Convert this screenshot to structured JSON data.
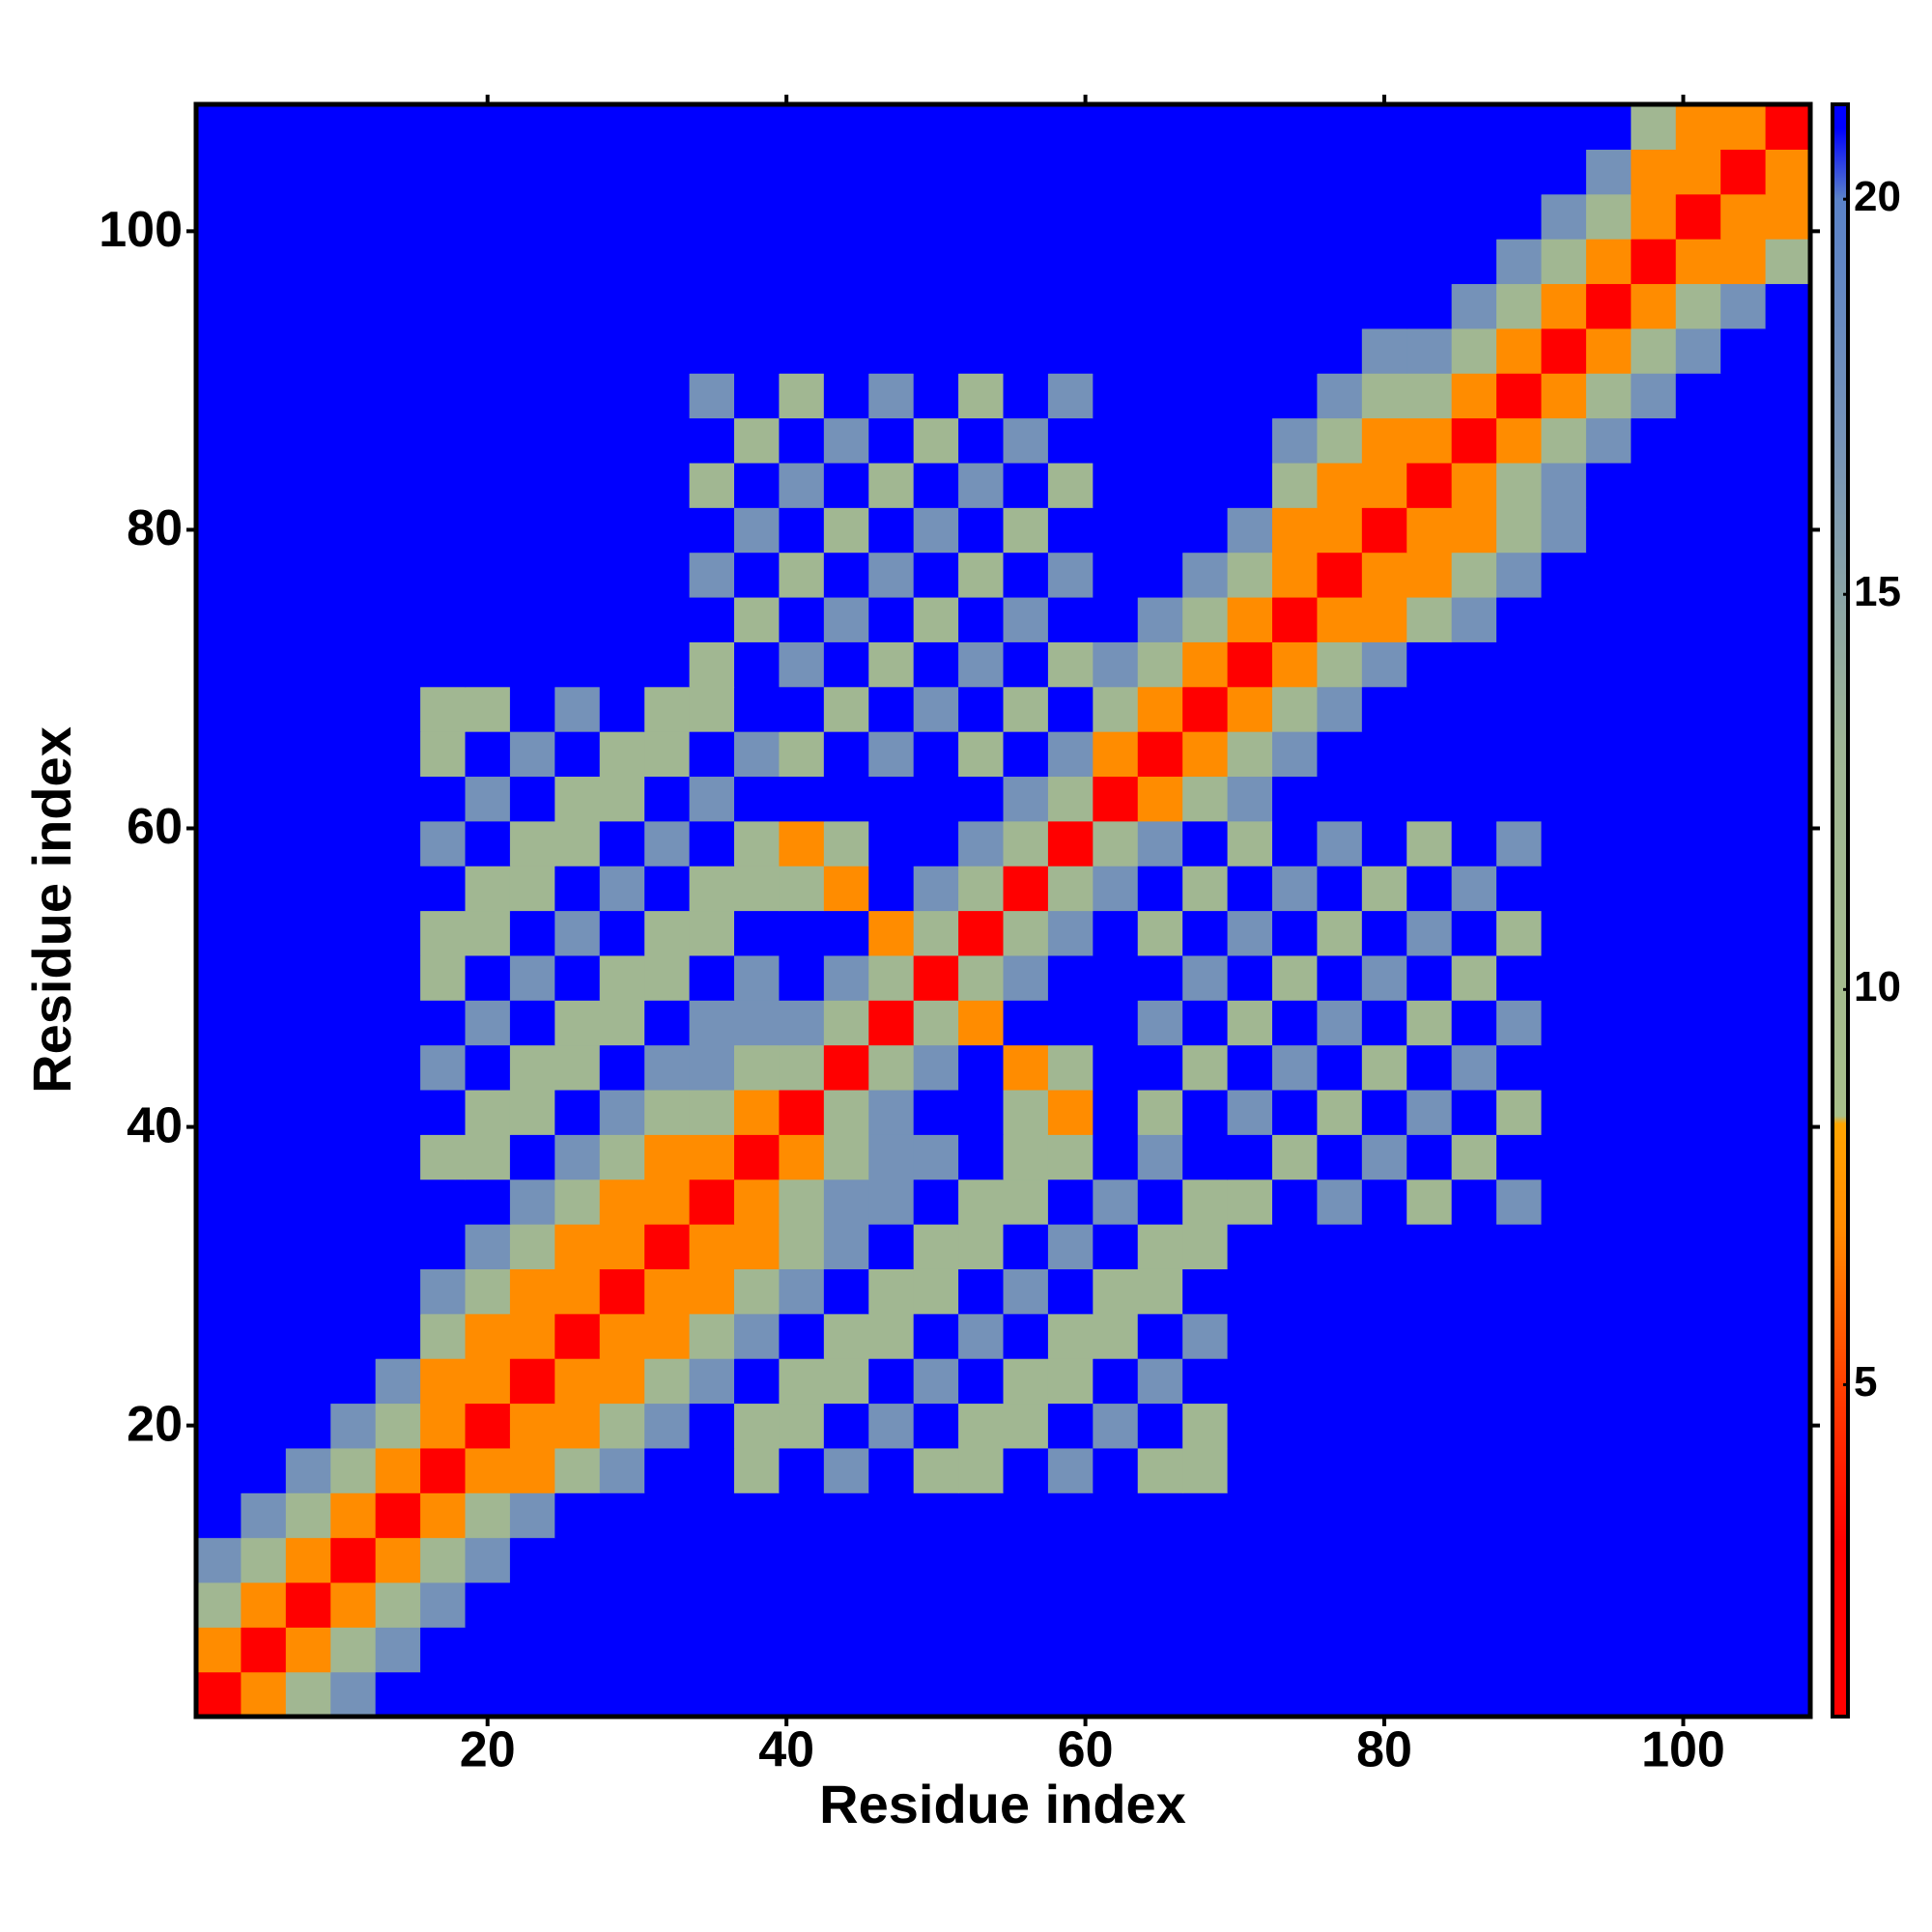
{
  "chart_data": {
    "type": "heatmap",
    "x_label": "Residue index",
    "y_label": "Residue index",
    "xlim": [
      0.5,
      108.5
    ],
    "ylim": [
      0.5,
      108.5
    ],
    "xticks": [
      20,
      40,
      60,
      80,
      100
    ],
    "yticks": [
      20,
      40,
      60,
      80,
      100
    ],
    "zlim": [
      0.8,
      21.2
    ],
    "zticks": [
      5,
      10,
      15,
      20
    ],
    "colorscale": [
      [
        0.8,
        "#ff0000"
      ],
      [
        3,
        "#ff0000"
      ],
      [
        5,
        "#ff4000"
      ],
      [
        7,
        "#ff8c00"
      ],
      [
        8.3,
        "#ffa500"
      ],
      [
        8.4,
        "#a8bf8a"
      ],
      [
        13,
        "#9fb594"
      ],
      [
        17,
        "#7592b8"
      ],
      [
        20,
        "#5a82c8"
      ],
      [
        20.9,
        "#0000ff"
      ],
      [
        21.2,
        "#0000ff"
      ]
    ],
    "x": [
      2,
      5,
      8,
      11,
      14,
      17,
      20,
      23,
      26,
      29,
      32,
      35,
      38,
      41,
      44,
      47,
      50,
      53,
      56,
      59,
      62,
      65,
      68,
      71,
      74,
      77,
      80,
      83,
      86,
      89,
      92,
      95,
      98,
      101,
      104,
      107
    ],
    "y": [
      2,
      5,
      8,
      11,
      14,
      17,
      20,
      23,
      26,
      29,
      32,
      35,
      38,
      41,
      44,
      47,
      50,
      53,
      56,
      59,
      62,
      65,
      68,
      71,
      74,
      77,
      80,
      83,
      86,
      89,
      92,
      95,
      98,
      101,
      104,
      107
    ],
    "z": [
      [
        2,
        7,
        12,
        17,
        21,
        21,
        21,
        21,
        21,
        21,
        21,
        21,
        21,
        21,
        21,
        21,
        21,
        21,
        21,
        21,
        21,
        21,
        21,
        21,
        21,
        21,
        21,
        21,
        21,
        21,
        21,
        21,
        21,
        21,
        21,
        21
      ],
      [
        7,
        2,
        7,
        12,
        17,
        21,
        21,
        21,
        21,
        21,
        21,
        21,
        21,
        21,
        21,
        21,
        21,
        21,
        21,
        21,
        21,
        21,
        21,
        21,
        21,
        21,
        21,
        21,
        21,
        21,
        21,
        21,
        21,
        21,
        21,
        21
      ],
      [
        12,
        7,
        2,
        7,
        12,
        17,
        21,
        21,
        21,
        21,
        21,
        21,
        21,
        21,
        21,
        21,
        21,
        21,
        21,
        21,
        21,
        21,
        21,
        21,
        21,
        21,
        21,
        21,
        21,
        21,
        21,
        21,
        21,
        21,
        21,
        21
      ],
      [
        17,
        12,
        7,
        2,
        7,
        12,
        17,
        21,
        21,
        21,
        21,
        21,
        21,
        21,
        21,
        21,
        21,
        21,
        21,
        21,
        21,
        21,
        21,
        21,
        21,
        21,
        21,
        21,
        21,
        21,
        21,
        21,
        21,
        21,
        21,
        21
      ],
      [
        21,
        17,
        12,
        7,
        2,
        7,
        12,
        17,
        21,
        21,
        21,
        21,
        21,
        21,
        21,
        21,
        21,
        21,
        21,
        21,
        21,
        21,
        21,
        21,
        21,
        21,
        21,
        21,
        21,
        21,
        21,
        21,
        21,
        21,
        21,
        21
      ],
      [
        21,
        21,
        17,
        12,
        7,
        2,
        7,
        7,
        12,
        17,
        21,
        21,
        12,
        21,
        17,
        21,
        12,
        12,
        21,
        17,
        21,
        12,
        12,
        21,
        21,
        21,
        21,
        21,
        21,
        21,
        21,
        21,
        21,
        21,
        21,
        21
      ],
      [
        21,
        21,
        21,
        17,
        12,
        7,
        2,
        7,
        7,
        12,
        17,
        21,
        12,
        12,
        21,
        17,
        21,
        12,
        12,
        21,
        17,
        21,
        12,
        21,
        21,
        21,
        21,
        21,
        21,
        21,
        21,
        21,
        21,
        21,
        21,
        21
      ],
      [
        21,
        21,
        21,
        21,
        17,
        7,
        7,
        2,
        7,
        7,
        12,
        17,
        21,
        12,
        12,
        21,
        17,
        21,
        12,
        12,
        21,
        17,
        21,
        21,
        21,
        21,
        21,
        21,
        21,
        21,
        21,
        21,
        21,
        21,
        21,
        21
      ],
      [
        21,
        21,
        21,
        21,
        21,
        12,
        7,
        7,
        2,
        7,
        7,
        12,
        17,
        21,
        12,
        12,
        21,
        17,
        21,
        12,
        12,
        21,
        17,
        21,
        21,
        21,
        21,
        21,
        21,
        21,
        21,
        21,
        21,
        21,
        21,
        21
      ],
      [
        21,
        21,
        21,
        21,
        21,
        17,
        12,
        7,
        7,
        2,
        7,
        7,
        12,
        17,
        21,
        12,
        12,
        21,
        17,
        21,
        12,
        12,
        21,
        21,
        21,
        21,
        21,
        21,
        21,
        21,
        21,
        21,
        21,
        21,
        21,
        21
      ],
      [
        21,
        21,
        21,
        21,
        21,
        21,
        17,
        12,
        7,
        7,
        2,
        7,
        7,
        12,
        17,
        21,
        12,
        12,
        21,
        17,
        21,
        12,
        12,
        21,
        21,
        21,
        21,
        21,
        21,
        21,
        21,
        21,
        21,
        21,
        21,
        21
      ],
      [
        21,
        21,
        21,
        21,
        21,
        21,
        21,
        17,
        12,
        7,
        7,
        2,
        7,
        12,
        17,
        17,
        21,
        12,
        12,
        21,
        17,
        21,
        12,
        12,
        21,
        17,
        21,
        12,
        21,
        17,
        21,
        21,
        21,
        21,
        21,
        21
      ],
      [
        21,
        21,
        21,
        21,
        21,
        12,
        12,
        21,
        17,
        12,
        7,
        7,
        2,
        7,
        12,
        17,
        17,
        21,
        12,
        12,
        21,
        17,
        21,
        21,
        12,
        21,
        17,
        21,
        12,
        21,
        21,
        21,
        21,
        21,
        21,
        21
      ],
      [
        21,
        21,
        21,
        21,
        21,
        21,
        12,
        12,
        21,
        17,
        12,
        12,
        7,
        2,
        12,
        17,
        21,
        21,
        12,
        7,
        21,
        12,
        21,
        17,
        21,
        12,
        21,
        17,
        21,
        12,
        21,
        21,
        21,
        21,
        21,
        21
      ],
      [
        21,
        21,
        21,
        21,
        21,
        17,
        21,
        12,
        12,
        21,
        17,
        17,
        12,
        12,
        2,
        12,
        17,
        21,
        7,
        12,
        21,
        21,
        12,
        21,
        17,
        21,
        12,
        21,
        17,
        21,
        21,
        21,
        21,
        21,
        21,
        21
      ],
      [
        21,
        21,
        21,
        21,
        21,
        21,
        17,
        21,
        12,
        12,
        21,
        17,
        17,
        17,
        12,
        2,
        12,
        7,
        21,
        21,
        21,
        17,
        21,
        12,
        21,
        17,
        21,
        12,
        21,
        17,
        21,
        21,
        21,
        21,
        21,
        21
      ],
      [
        21,
        21,
        21,
        21,
        21,
        12,
        21,
        17,
        21,
        12,
        12,
        21,
        17,
        21,
        17,
        12,
        2,
        12,
        17,
        21,
        21,
        21,
        17,
        21,
        12,
        21,
        17,
        21,
        12,
        21,
        21,
        21,
        21,
        21,
        21,
        21
      ],
      [
        21,
        21,
        21,
        21,
        21,
        12,
        12,
        21,
        17,
        21,
        12,
        12,
        21,
        21,
        21,
        7,
        12,
        2,
        12,
        17,
        21,
        12,
        21,
        17,
        21,
        12,
        21,
        17,
        21,
        12,
        21,
        21,
        21,
        21,
        21,
        21
      ],
      [
        21,
        21,
        21,
        21,
        21,
        21,
        12,
        12,
        21,
        17,
        21,
        12,
        12,
        12,
        7,
        21,
        17,
        12,
        2,
        12,
        17,
        21,
        12,
        21,
        17,
        21,
        12,
        21,
        17,
        21,
        21,
        21,
        21,
        21,
        21,
        21
      ],
      [
        21,
        21,
        21,
        21,
        21,
        17,
        21,
        12,
        12,
        21,
        17,
        21,
        12,
        7,
        12,
        21,
        21,
        17,
        12,
        2,
        12,
        17,
        21,
        12,
        21,
        17,
        21,
        12,
        21,
        17,
        21,
        21,
        21,
        21,
        21,
        21
      ],
      [
        21,
        21,
        21,
        21,
        21,
        21,
        17,
        21,
        12,
        12,
        21,
        17,
        21,
        21,
        21,
        21,
        21,
        21,
        17,
        12,
        2,
        7,
        12,
        17,
        21,
        21,
        21,
        21,
        21,
        21,
        21,
        21,
        21,
        21,
        21,
        21
      ],
      [
        21,
        21,
        21,
        21,
        21,
        12,
        21,
        17,
        21,
        12,
        12,
        21,
        17,
        12,
        21,
        17,
        21,
        12,
        21,
        17,
        7,
        2,
        7,
        12,
        17,
        21,
        21,
        21,
        21,
        21,
        21,
        21,
        21,
        21,
        21,
        21
      ],
      [
        21,
        21,
        21,
        21,
        21,
        12,
        12,
        21,
        17,
        21,
        12,
        12,
        21,
        21,
        12,
        21,
        17,
        21,
        12,
        21,
        12,
        7,
        2,
        7,
        12,
        17,
        21,
        21,
        21,
        21,
        21,
        21,
        21,
        21,
        21,
        21
      ],
      [
        21,
        21,
        21,
        21,
        21,
        21,
        21,
        21,
        21,
        21,
        21,
        12,
        21,
        17,
        21,
        12,
        21,
        17,
        21,
        12,
        17,
        12,
        7,
        2,
        7,
        12,
        17,
        21,
        21,
        21,
        21,
        21,
        21,
        21,
        21,
        21
      ],
      [
        21,
        21,
        21,
        21,
        21,
        21,
        21,
        21,
        21,
        21,
        21,
        21,
        12,
        21,
        17,
        21,
        12,
        21,
        17,
        21,
        21,
        17,
        12,
        7,
        2,
        7,
        7,
        12,
        17,
        21,
        21,
        21,
        21,
        21,
        21,
        21
      ],
      [
        21,
        21,
        21,
        21,
        21,
        21,
        21,
        21,
        21,
        21,
        21,
        17,
        21,
        12,
        21,
        17,
        21,
        12,
        21,
        17,
        21,
        21,
        17,
        12,
        7,
        2,
        7,
        7,
        12,
        17,
        21,
        21,
        21,
        21,
        21,
        21
      ],
      [
        21,
        21,
        21,
        21,
        21,
        21,
        21,
        21,
        21,
        21,
        21,
        21,
        17,
        21,
        12,
        21,
        17,
        21,
        12,
        21,
        21,
        21,
        21,
        17,
        7,
        7,
        2,
        7,
        7,
        12,
        17,
        21,
        21,
        21,
        21,
        21
      ],
      [
        21,
        21,
        21,
        21,
        21,
        21,
        21,
        21,
        21,
        21,
        21,
        12,
        21,
        17,
        21,
        12,
        21,
        17,
        21,
        12,
        21,
        21,
        21,
        21,
        12,
        7,
        7,
        2,
        7,
        12,
        17,
        21,
        21,
        21,
        21,
        21
      ],
      [
        21,
        21,
        21,
        21,
        21,
        21,
        21,
        21,
        21,
        21,
        21,
        21,
        12,
        21,
        17,
        21,
        12,
        21,
        17,
        21,
        21,
        21,
        21,
        21,
        17,
        12,
        7,
        7,
        2,
        7,
        12,
        17,
        21,
        21,
        21,
        21
      ],
      [
        21,
        21,
        21,
        21,
        21,
        21,
        21,
        21,
        21,
        21,
        21,
        17,
        21,
        12,
        21,
        17,
        21,
        12,
        21,
        17,
        21,
        21,
        21,
        21,
        21,
        17,
        12,
        12,
        7,
        2,
        7,
        12,
        17,
        21,
        21,
        21
      ],
      [
        21,
        21,
        21,
        21,
        21,
        21,
        21,
        21,
        21,
        21,
        21,
        21,
        21,
        21,
        21,
        21,
        21,
        21,
        21,
        21,
        21,
        21,
        21,
        21,
        21,
        21,
        17,
        17,
        12,
        7,
        2,
        7,
        12,
        17,
        21,
        21
      ],
      [
        21,
        21,
        21,
        21,
        21,
        21,
        21,
        21,
        21,
        21,
        21,
        21,
        21,
        21,
        21,
        21,
        21,
        21,
        21,
        21,
        21,
        21,
        21,
        21,
        21,
        21,
        21,
        21,
        17,
        12,
        7,
        2,
        7,
        12,
        17,
        21
      ],
      [
        21,
        21,
        21,
        21,
        21,
        21,
        21,
        21,
        21,
        21,
        21,
        21,
        21,
        21,
        21,
        21,
        21,
        21,
        21,
        21,
        21,
        21,
        21,
        21,
        21,
        21,
        21,
        21,
        21,
        17,
        12,
        7,
        2,
        7,
        7,
        12
      ],
      [
        21,
        21,
        21,
        21,
        21,
        21,
        21,
        21,
        21,
        21,
        21,
        21,
        21,
        21,
        21,
        21,
        21,
        21,
        21,
        21,
        21,
        21,
        21,
        21,
        21,
        21,
        21,
        21,
        21,
        21,
        17,
        12,
        7,
        2,
        7,
        7
      ],
      [
        21,
        21,
        21,
        21,
        21,
        21,
        21,
        21,
        21,
        21,
        21,
        21,
        21,
        21,
        21,
        21,
        21,
        21,
        21,
        21,
        21,
        21,
        21,
        21,
        21,
        21,
        21,
        21,
        21,
        21,
        21,
        17,
        7,
        7,
        2,
        7
      ],
      [
        21,
        21,
        21,
        21,
        21,
        21,
        21,
        21,
        21,
        21,
        21,
        21,
        21,
        21,
        21,
        21,
        21,
        21,
        21,
        21,
        21,
        21,
        21,
        21,
        21,
        21,
        21,
        21,
        21,
        21,
        21,
        21,
        12,
        7,
        7,
        2
      ]
    ]
  }
}
